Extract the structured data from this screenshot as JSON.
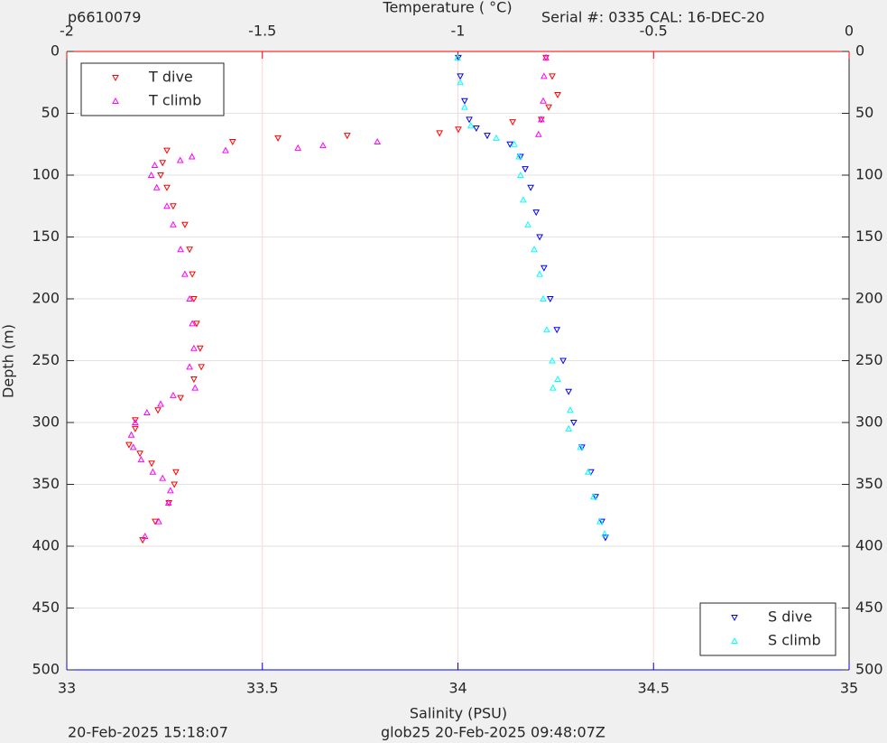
{
  "chart_data": {
    "type": "scatter",
    "header_left": "p6610079",
    "header_right": "Serial #: 0335  CAL: 16-DEC-20",
    "x2_label": "Temperature (   °C)",
    "x_label": "Salinity (PSU)",
    "y_label": "Depth (m)",
    "footer_left": "20-Feb-2025 15:18:07",
    "footer_right": "glob25 20-Feb-2025 09:48:07Z",
    "xlim": [
      33,
      35
    ],
    "xticks": [
      33,
      33.5,
      34,
      34.5,
      35
    ],
    "x_color": "#0000ff",
    "x2lim": [
      -2,
      0
    ],
    "x2ticks": [
      -2,
      -1.5,
      -1,
      -0.5,
      0
    ],
    "x2_color": "#ff0000",
    "ylim": [
      0,
      500
    ],
    "yticks": [
      0,
      50,
      100,
      150,
      200,
      250,
      300,
      350,
      400,
      450,
      500
    ],
    "y_reversed": true,
    "grid": true,
    "series": [
      {
        "name": "T dive",
        "color": "#ff0000",
        "marker": "down",
        "axis": "x2",
        "legend": "northwest",
        "x": [
          -0.775,
          -0.759,
          -0.745,
          -0.768,
          -0.787,
          -0.86,
          -0.999,
          -1.047,
          -1.283,
          -1.46,
          -1.576,
          -1.744,
          -1.755,
          -1.76,
          -1.744,
          -1.728,
          -1.698,
          -1.686,
          -1.679,
          -1.675,
          -1.668,
          -1.659,
          -1.656,
          -1.675,
          -1.709,
          -1.767,
          -1.825,
          -1.825,
          -1.841,
          -1.813,
          -1.783,
          -1.721,
          -1.725,
          -1.739,
          -1.774,
          -1.806
        ],
        "y": [
          5,
          20,
          35,
          45,
          55,
          57,
          63,
          66,
          68,
          70,
          73,
          80,
          90,
          100,
          110,
          125,
          140,
          160,
          180,
          200,
          220,
          240,
          255,
          265,
          280,
          290,
          298,
          305,
          318,
          325,
          333,
          340,
          350,
          365,
          380,
          395
        ]
      },
      {
        "name": "T climb",
        "color": "#ff00ff",
        "marker": "up",
        "axis": "x2",
        "legend": "northwest",
        "x": [
          -0.775,
          -0.78,
          -0.782,
          -0.787,
          -0.794,
          -1.206,
          -1.345,
          -1.409,
          -1.594,
          -1.68,
          -1.71,
          -1.775,
          -1.784,
          -1.77,
          -1.744,
          -1.728,
          -1.709,
          -1.698,
          -1.686,
          -1.679,
          -1.675,
          -1.686,
          -1.672,
          -1.728,
          -1.76,
          -1.795,
          -1.825,
          -1.835,
          -1.83,
          -1.81,
          -1.78,
          -1.755,
          -1.735,
          -1.74,
          -1.765,
          -1.8
        ],
        "y": [
          5,
          20,
          40,
          55,
          67,
          73,
          76,
          78,
          80,
          85,
          88,
          92,
          100,
          110,
          125,
          140,
          160,
          180,
          200,
          220,
          240,
          255,
          272,
          278,
          285,
          292,
          300,
          310,
          320,
          330,
          340,
          345,
          355,
          365,
          380,
          392
        ]
      },
      {
        "name": "S dive",
        "color": "#0000ff",
        "marker": "down",
        "axis": "x",
        "legend": "southeast",
        "x": [
          34.001,
          34.006,
          34.017,
          34.029,
          34.047,
          34.075,
          34.133,
          34.16,
          34.172,
          34.186,
          34.2,
          34.209,
          34.22,
          34.236,
          34.253,
          34.269,
          34.283,
          34.296,
          34.317,
          34.34,
          34.352,
          34.368,
          34.377
        ],
        "y": [
          5,
          20,
          40,
          55,
          62,
          68,
          75,
          85,
          95,
          110,
          130,
          150,
          175,
          200,
          225,
          250,
          275,
          300,
          320,
          340,
          360,
          380,
          393
        ]
      },
      {
        "name": "S climb",
        "color": "#00ffff",
        "marker": "up",
        "axis": "x",
        "legend": "southeast",
        "x": [
          33.999,
          34.006,
          34.017,
          34.033,
          34.098,
          34.144,
          34.156,
          34.16,
          34.167,
          34.179,
          34.195,
          34.209,
          34.218,
          34.227,
          34.241,
          34.255,
          34.243,
          34.287,
          34.283,
          34.313,
          34.333,
          34.347,
          34.363,
          34.375
        ],
        "y": [
          5,
          25,
          45,
          60,
          70,
          75,
          85,
          100,
          120,
          140,
          160,
          180,
          200,
          225,
          250,
          265,
          272,
          290,
          305,
          320,
          340,
          360,
          380,
          390
        ]
      }
    ]
  }
}
